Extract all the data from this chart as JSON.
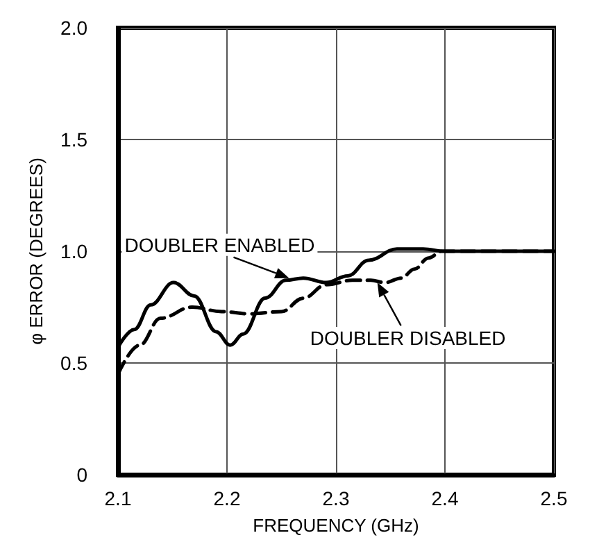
{
  "chart_data": {
    "type": "line",
    "xlabel": "FREQUENCY (GHz)",
    "ylabel": "φ ERROR (DEGREES)",
    "xlim": [
      2.1,
      2.5
    ],
    "xticks": [
      2.1,
      2.2,
      2.3,
      2.4,
      2.5
    ],
    "ylim": [
      0,
      2.0
    ],
    "yticks": [
      0,
      0.5,
      {
        "value": 1,
        "label": "1.0"
      },
      1.5,
      {
        "value": 2,
        "label": "2.0"
      }
    ],
    "grid": true,
    "marker": "none",
    "series": [
      {
        "color": "#000000",
        "line_style": "solid",
        "x": [
          2.1,
          2.115,
          2.13,
          2.151,
          2.17,
          2.19,
          2.203,
          2.215,
          2.235,
          2.254,
          2.27,
          2.291,
          2.311,
          2.33,
          2.356,
          2.38,
          2.4,
          2.45,
          2.5
        ],
        "values": [
          0.57,
          0.65,
          0.76,
          0.86,
          0.8,
          0.64,
          0.58,
          0.63,
          0.79,
          0.87,
          0.88,
          0.86,
          0.89,
          0.96,
          1.01,
          1.01,
          1.0,
          1.0,
          1.0
        ]
      },
      {
        "color": "#000000",
        "line_style": "dashed",
        "x": [
          2.1,
          2.12,
          2.139,
          2.168,
          2.195,
          2.221,
          2.25,
          2.27,
          2.291,
          2.315,
          2.332,
          2.345,
          2.36,
          2.372,
          2.385,
          2.397,
          2.45,
          2.5
        ],
        "values": [
          0.45,
          0.58,
          0.7,
          0.75,
          0.73,
          0.72,
          0.73,
          0.79,
          0.85,
          0.87,
          0.87,
          0.86,
          0.88,
          0.92,
          0.97,
          1.0,
          1.0,
          1.0
        ]
      }
    ],
    "annotations": [
      {
        "text": "DOUBLER ENABLED",
        "x": 2.257,
        "y": 0.88
      },
      {
        "text": "DOUBLER DISABLED",
        "x": 2.338,
        "y": 0.86
      }
    ]
  }
}
